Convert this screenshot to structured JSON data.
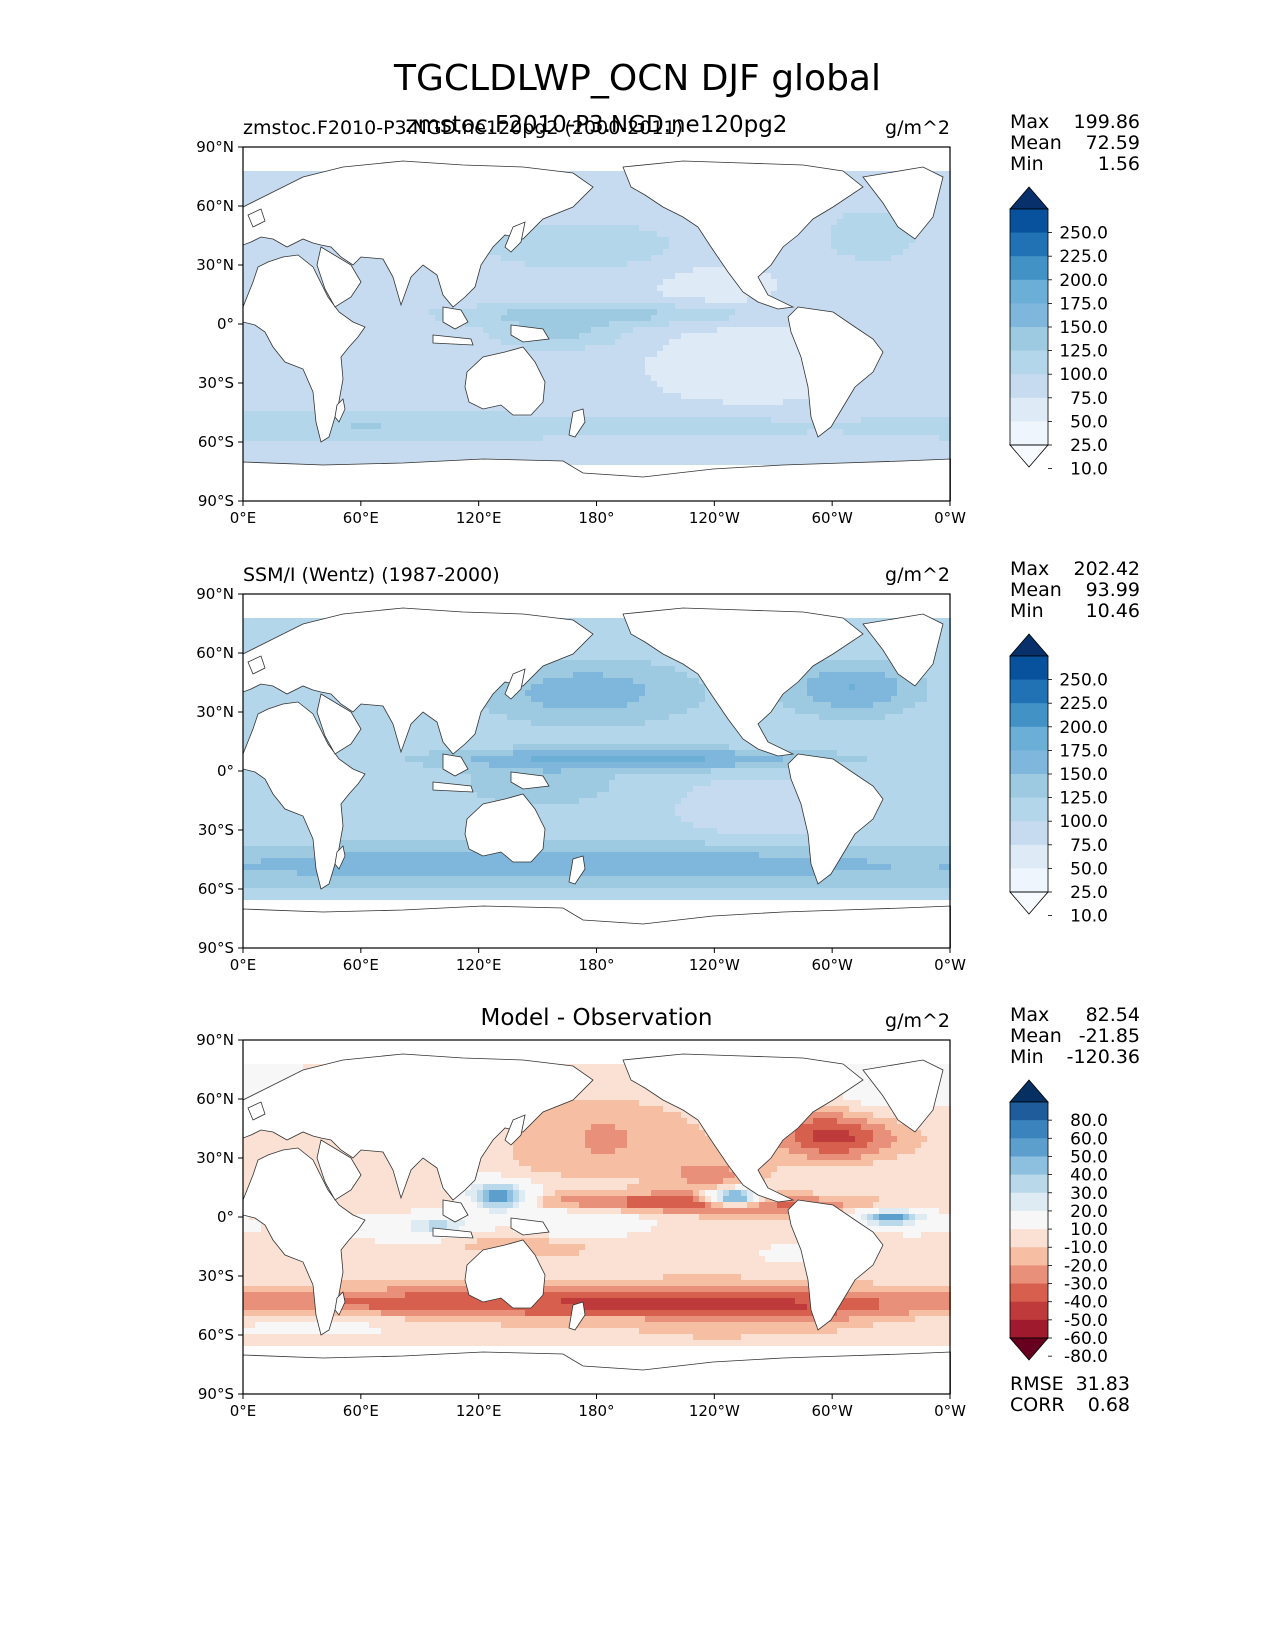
{
  "chart_data": {
    "type": "heatmap",
    "suptitle": "TGCLDLWP_OCN DJF global",
    "lat_ticks": [
      "90°N",
      "60°N",
      "30°N",
      "0°",
      "30°S",
      "60°S",
      "90°S"
    ],
    "lon_ticks": [
      "0°E",
      "60°E",
      "120°E",
      "180°",
      "120°W",
      "60°W",
      "0°W"
    ],
    "lat_range": [
      -90,
      90
    ],
    "lon_range": [
      0,
      360
    ],
    "panels": [
      {
        "id": "model",
        "title_left": "zmstoc.F2010-P3.NGD.ne120pg2 (2000-2011)",
        "title_center": "zmstoc.F2010-P3.NGD.ne120pg2",
        "units": "g/m^2",
        "stats": [
          {
            "label": "Max",
            "value": "199.86"
          },
          {
            "label": "Mean",
            "value": "72.59"
          },
          {
            "label": "Min",
            "value": "1.56"
          }
        ],
        "colorbar_levels": [
          "250.0",
          "225.0",
          "200.0",
          "175.0",
          "150.0",
          "125.0",
          "100.0",
          "75.0",
          "50.0",
          "25.0",
          "10.0"
        ],
        "colorbar_colors": [
          "#08306b",
          "#08519c",
          "#2171b5",
          "#4292c6",
          "#6baed6",
          "#7fb6dc",
          "#9ecae1",
          "#b4d6ea",
          "#c6dbef",
          "#deebf7",
          "#eef5fc",
          "#f7fbff"
        ],
        "colorbar_extend": "both",
        "description_values": {
          "nh_midlat_band": 100,
          "itcz": 125,
          "so_band": 110,
          "subtropics": 60
        }
      },
      {
        "id": "obs",
        "title_left": "SSM/I (Wentz) (1987-2000)",
        "units": "g/m^2",
        "stats": [
          {
            "label": "Max",
            "value": "202.42"
          },
          {
            "label": "Mean",
            "value": "93.99"
          },
          {
            "label": "Min",
            "value": "10.46"
          }
        ],
        "colorbar_levels": [
          "250.0",
          "225.0",
          "200.0",
          "175.0",
          "150.0",
          "125.0",
          "100.0",
          "75.0",
          "50.0",
          "25.0",
          "10.0"
        ],
        "colorbar_colors": [
          "#08306b",
          "#08519c",
          "#2171b5",
          "#4292c6",
          "#6baed6",
          "#7fb6dc",
          "#9ecae1",
          "#b4d6ea",
          "#c6dbef",
          "#deebf7",
          "#eef5fc",
          "#f7fbff"
        ],
        "colorbar_extend": "both",
        "description_values": {
          "nh_midlat_band": 150,
          "itcz": 175,
          "so_band": 140,
          "subtropics": 90
        }
      },
      {
        "id": "diff",
        "title_center": "Model - Observation",
        "units": "g/m^2",
        "stats": [
          {
            "label": "Max",
            "value": "82.54"
          },
          {
            "label": "Mean",
            "value": "-21.85"
          },
          {
            "label": "Min",
            "value": "-120.36"
          }
        ],
        "colorbar_levels": [
          "80.0",
          "60.0",
          "50.0",
          "40.0",
          "30.0",
          "20.0",
          "10.0",
          "-10.0",
          "-20.0",
          "-30.0",
          "-40.0",
          "-50.0",
          "-60.0",
          "-80.0"
        ],
        "colorbar_colors": [
          "#053061",
          "#1f5c9c",
          "#3b83bd",
          "#5c9fcc",
          "#8cc0de",
          "#b9d8ea",
          "#deebf2",
          "#f7f7f7",
          "#fbe1d3",
          "#f6bfa3",
          "#e8907a",
          "#d6604d",
          "#bf3a3a",
          "#a01a2d",
          "#67001f"
        ],
        "colorbar_extend": "both",
        "bottom_stats": [
          {
            "label": "RMSE",
            "value": "31.83"
          },
          {
            "label": "CORR",
            "value": "0.68"
          }
        ],
        "description_values": {
          "nh_midlat_band": -50,
          "itcz": -20,
          "so_band": -40,
          "warm_pool": 40
        }
      }
    ]
  }
}
